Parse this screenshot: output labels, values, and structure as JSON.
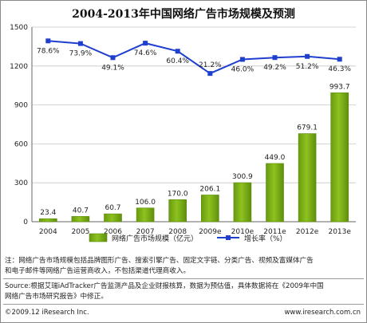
{
  "title": "2004-2013年中国网络广告市场规模及预测",
  "chart_data": {
    "type": "bar",
    "categories": [
      "2004",
      "2005",
      "2006",
      "2007",
      "2008",
      "2009e",
      "2010e",
      "2011e",
      "2012e",
      "2013e"
    ],
    "series": [
      {
        "name": "网络广告市场规模（亿元）",
        "type": "bar",
        "values": [
          23.4,
          40.7,
          60.7,
          106.0,
          170.0,
          206.1,
          300.9,
          449.0,
          679.1,
          993.7
        ],
        "labels": [
          "23.4",
          "40.7",
          "60.7",
          "106.0",
          "170.0",
          "206.1",
          "300.9",
          "449.0",
          "679.1",
          "993.7"
        ],
        "color": "#8dc21f"
      },
      {
        "name": "增长率（%）",
        "type": "line",
        "values": [
          78.6,
          73.9,
          49.1,
          74.6,
          60.4,
          21.2,
          46.0,
          49.2,
          51.2,
          46.3
        ],
        "labels": [
          "78.6%",
          "73.9%",
          "49.1%",
          "74.6%",
          "60.4%",
          "21.2%",
          "46.0%",
          "49.2%",
          "51.2%",
          "46.3%"
        ],
        "color": "#1f3fcf"
      }
    ],
    "yticks": [
      "0",
      "300",
      "600",
      "900",
      "1200",
      "1500"
    ],
    "ylim": [
      0,
      1500
    ],
    "grid": true,
    "legend_position": "bottom"
  },
  "notes": [
    "注：网络广告市场规模包括品牌图形广告、搜索引擎广告、固定文字链、分类广告、视频及富媒体广告",
    "和电子邮件等网络广告运营商收入，不包括渠道代理商收入。"
  ],
  "source": [
    "Source:根据艾瑞iAdTracker广告监测产品及企业财报核算，数据为预估值，具体数据将在《2009年中国",
    "网络广告市场研究报告》中修正。"
  ],
  "copyright": "©2009.12 iResearch Inc.",
  "website": "www.iresearch.com.cn"
}
